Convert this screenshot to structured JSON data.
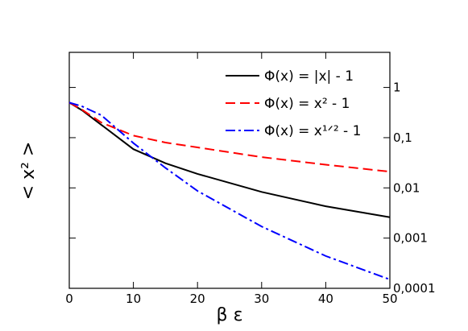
{
  "chart_data": {
    "type": "line",
    "x_label": "β ε",
    "y_label": "< x² >",
    "x": [
      0,
      2,
      5,
      10,
      15,
      20,
      30,
      40,
      50
    ],
    "series": [
      {
        "name": "Φ(x) = |x| - 1",
        "color": "#000000",
        "dash": "solid",
        "values": [
          0.5,
          0.35,
          0.18,
          0.059,
          0.031,
          0.019,
          0.0083,
          0.0043,
          0.0026
        ]
      },
      {
        "name": "Φ(x) = x² - 1",
        "color": "#ff0000",
        "dash": "dashed",
        "values": [
          0.5,
          0.36,
          0.2,
          0.11,
          0.08,
          0.064,
          0.041,
          0.029,
          0.021
        ]
      },
      {
        "name": "Φ(x) = x¹ᐟ² - 1",
        "color": "#0000ff",
        "dash": "dashdot",
        "values": [
          0.5,
          0.42,
          0.28,
          0.078,
          0.025,
          0.0087,
          0.0017,
          0.00044,
          0.00015
        ]
      }
    ],
    "xlim": [
      0,
      50
    ],
    "xticks": [
      0,
      10,
      20,
      30,
      40,
      50
    ],
    "ylim": [
      0.0001,
      5
    ],
    "log_y": true,
    "yticks": [
      1,
      {
        "value": 0.1,
        "label": "0,1"
      },
      {
        "value": 0.01,
        "label": "0,01"
      },
      {
        "value": 0.001,
        "label": "0,001"
      },
      {
        "value": 0.0001,
        "label": "0,0001"
      }
    ],
    "legend": "upper-right"
  }
}
